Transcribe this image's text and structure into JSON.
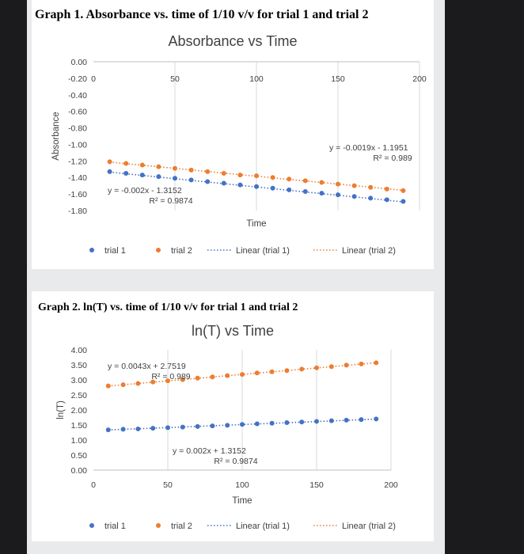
{
  "page_captions": [
    "Graph 1. Absorbance vs. time of 1/10 v/v for trial 1 and trial 2",
    "Graph 2. ln(T) vs. time of 1/10 v/v for trial 1 and trial 2"
  ],
  "colors": {
    "trial1": "#4472c4",
    "trial2": "#ed7d31",
    "grid": "#d9d9d9"
  },
  "chart_data": [
    {
      "type": "scatter",
      "title": "Absorbance vs Time",
      "xlabel": "Time",
      "ylabel": "Absorbance",
      "xlim": [
        0,
        200
      ],
      "ylim": [
        -1.8,
        0.0
      ],
      "x_axis_position": "top",
      "x_ticks": [
        "0",
        "50",
        "100",
        "150",
        "200"
      ],
      "y_ticks": [
        "0.00",
        "-0.20",
        "-0.40",
        "-0.60",
        "-0.80",
        "-1.00",
        "-1.20",
        "-1.40",
        "-1.60",
        "-1.80"
      ],
      "grid": true,
      "legend_position": "bottom",
      "legend": [
        "trial 1",
        "trial 2",
        "Linear (trial 1)",
        "Linear (trial 2)"
      ],
      "series": [
        {
          "name": "trial 1",
          "color": "#4472c4",
          "x": [
            10,
            20,
            30,
            40,
            50,
            60,
            70,
            80,
            90,
            100,
            110,
            120,
            130,
            140,
            150,
            160,
            170,
            180,
            190
          ],
          "y": [
            -1.33,
            -1.35,
            -1.37,
            -1.39,
            -1.41,
            -1.43,
            -1.45,
            -1.47,
            -1.49,
            -1.51,
            -1.53,
            -1.55,
            -1.57,
            -1.59,
            -1.61,
            -1.63,
            -1.65,
            -1.67,
            -1.69
          ]
        },
        {
          "name": "trial 2",
          "color": "#ed7d31",
          "x": [
            10,
            20,
            30,
            40,
            50,
            60,
            70,
            80,
            90,
            100,
            110,
            120,
            130,
            140,
            150,
            160,
            170,
            180,
            190
          ],
          "y": [
            -1.21,
            -1.23,
            -1.25,
            -1.27,
            -1.29,
            -1.31,
            -1.33,
            -1.35,
            -1.37,
            -1.38,
            -1.4,
            -1.42,
            -1.44,
            -1.46,
            -1.48,
            -1.5,
            -1.52,
            -1.54,
            -1.56
          ]
        }
      ],
      "trendlines": [
        {
          "name": "Linear (trial 1)",
          "series": 0,
          "slope": -0.002,
          "intercept": -1.3152,
          "equation": "y = -0.002x - 1.3152",
          "r2": "R² = 0.9874"
        },
        {
          "name": "Linear (trial 2)",
          "series": 1,
          "slope": -0.0019,
          "intercept": -1.1951,
          "equation": "y = -0.0019x - 1.1951",
          "r2": "R² = 0.989"
        }
      ]
    },
    {
      "type": "scatter",
      "title": "ln(T) vs Time",
      "xlabel": "Time",
      "ylabel": "ln(T)",
      "xlim": [
        0,
        200
      ],
      "ylim": [
        0.0,
        4.0
      ],
      "x_ticks": [
        "0",
        "50",
        "100",
        "150",
        "200"
      ],
      "y_ticks": [
        "0.00",
        "0.50",
        "1.00",
        "1.50",
        "2.00",
        "2.50",
        "3.00",
        "3.50",
        "4.00"
      ],
      "grid": true,
      "legend_position": "bottom",
      "legend": [
        "trial 1",
        "trial 2",
        "Linear (trial 1)",
        "Linear (trial 2)"
      ],
      "series": [
        {
          "name": "trial 1",
          "color": "#4472c4",
          "x": [
            10,
            20,
            30,
            40,
            50,
            60,
            70,
            80,
            90,
            100,
            110,
            120,
            130,
            140,
            150,
            160,
            170,
            180,
            190
          ],
          "y": [
            1.34,
            1.36,
            1.37,
            1.39,
            1.41,
            1.43,
            1.45,
            1.47,
            1.49,
            1.52,
            1.54,
            1.56,
            1.58,
            1.6,
            1.62,
            1.64,
            1.66,
            1.68,
            1.7
          ]
        },
        {
          "name": "trial 2",
          "color": "#ed7d31",
          "x": [
            10,
            20,
            30,
            40,
            50,
            60,
            70,
            80,
            90,
            100,
            110,
            120,
            130,
            140,
            150,
            160,
            170,
            180,
            190
          ],
          "y": [
            2.8,
            2.84,
            2.88,
            2.93,
            2.97,
            3.01,
            3.06,
            3.1,
            3.14,
            3.18,
            3.23,
            3.27,
            3.31,
            3.36,
            3.4,
            3.44,
            3.49,
            3.53,
            3.57
          ]
        }
      ],
      "trendlines": [
        {
          "name": "Linear (trial 1)",
          "series": 0,
          "slope": 0.002,
          "intercept": 1.3152,
          "equation": "y = 0.002x + 1.3152",
          "r2": "R² = 0.9874"
        },
        {
          "name": "Linear (trial 2)",
          "series": 1,
          "slope": 0.0043,
          "intercept": 2.7519,
          "equation": "y = 0.0043x + 2.7519",
          "r2": "R² = 0.989"
        }
      ]
    }
  ]
}
